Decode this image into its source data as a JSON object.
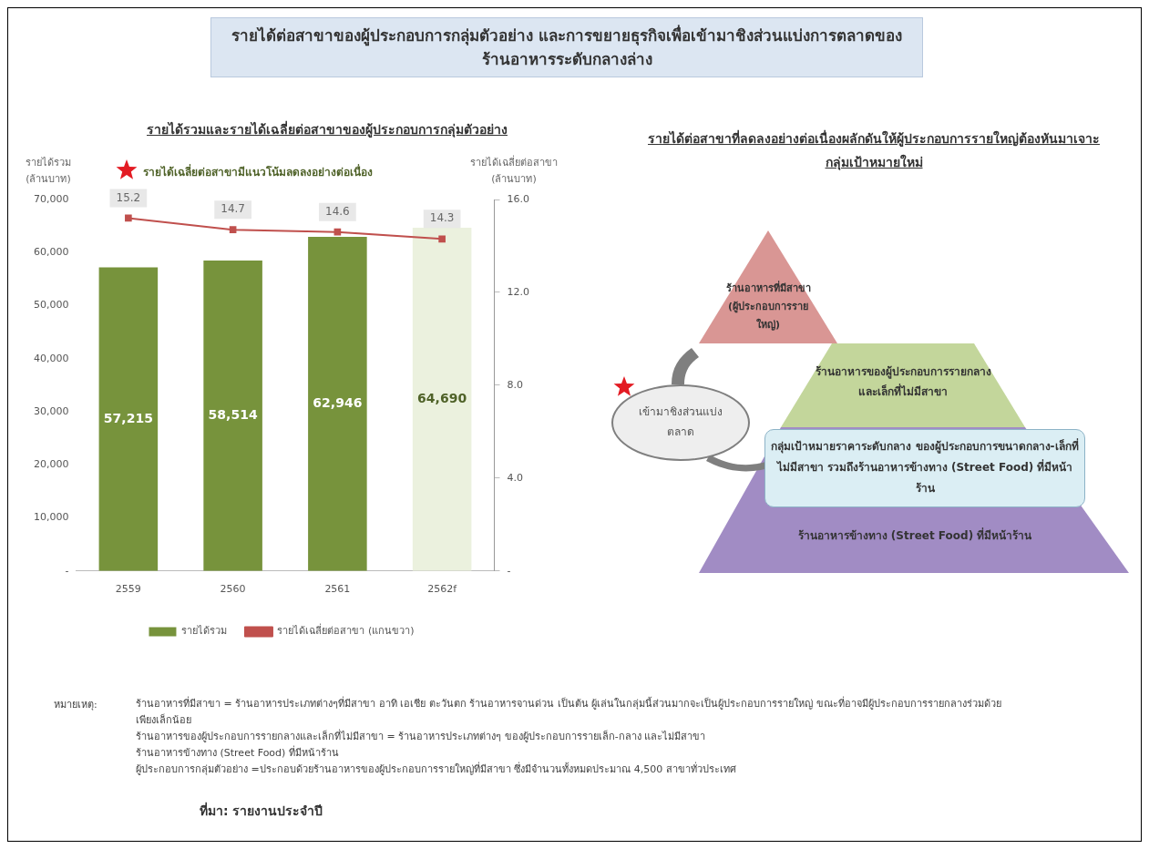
{
  "chart_data": [
    {
      "type": "bar",
      "title": "รายได้ต่อสาขาของผู้ประกอบการกลุ่มตัวอย่าง และการขยายธุรกิจเพื่อเข้ามาชิงส่วนแบ่งการตลาดของร้านอาหารระดับกลางล่าง",
      "subtitle": "รายได้รวมและรายได้เฉลี่ยต่อสาขาของผู้ประกอบการกลุ่มตัวอย่าง",
      "ylabel": "รายได้รวม (ล้านบาท)",
      "y2label": "รายได้เฉลี่ยต่อสาขา (ล้านบาท)",
      "categories": [
        "2559",
        "2560",
        "2561",
        "2562f"
      ],
      "series": [
        {
          "name": "รายได้รวม",
          "type": "bar",
          "colors": [
            "#77933c",
            "#77933c",
            "#77933c",
            "#ebf1de"
          ],
          "values": [
            57215,
            58514,
            62946,
            64690
          ],
          "value_labels": [
            "57,215",
            "58,514",
            "62,946",
            "64,690"
          ]
        },
        {
          "name": "รายได้เฉลี่ยต่อสาขา (แกนขวา)",
          "type": "line",
          "axis": "y2",
          "color": "#c0504d",
          "values": [
            15.2,
            14.7,
            14.6,
            14.3
          ],
          "value_labels": [
            "15.2",
            "14.7",
            "14.6",
            "14.3"
          ]
        }
      ],
      "ylim": [
        0,
        70000
      ],
      "yticks": [
        {
          "value": 0,
          "label": "-"
        },
        {
          "value": 10000,
          "label": "10,000"
        },
        {
          "value": 20000,
          "label": "20,000"
        },
        {
          "value": 30000,
          "label": "30,000"
        },
        {
          "value": 40000,
          "label": "40,000"
        },
        {
          "value": 50000,
          "label": "50,000"
        },
        {
          "value": 60000,
          "label": "60,000"
        },
        {
          "value": 70000,
          "label": "70,000"
        }
      ],
      "y2lim": [
        0,
        16
      ],
      "y2ticks": [
        {
          "value": 0,
          "label": "-"
        },
        {
          "value": 4,
          "label": "4.0"
        },
        {
          "value": 8,
          "label": "8.0"
        },
        {
          "value": 12,
          "label": "12.0"
        },
        {
          "value": 16,
          "label": "16.0"
        }
      ],
      "grid": false,
      "legend": "bottom",
      "marker": "square",
      "line_style": "solid",
      "annotations": [
        "รายได้เฉลี่ยต่อสาขามีแนวโน้มลดลงอย่างต่อเนื่อง",
        "หมายเหตุ:",
        "ร้านอาหารที่มีสาขา = ร้านอาหารประเภทต่างๆที่มีสาขา อาทิ เอเชีย ตะวันตก ร้านอาหารจานด่วน เป็นต้น ผู้เล่นในกลุ่มนี้ส่วนมากจะเป็นผู้ประกอบการรายใหญ่ ขณะที่อาจมีผู้ประกอบการรายกลางร่วมด้วยเพียงเล็กน้อย",
        "ร้านอาหารของผู้ประกอบการรายกลางและเล็กที่ไม่มีสาขา = ร้านอาหารประเภทต่างๆ ของผู้ประกอบการรายเล็ก-กลาง และไม่มีสาขา",
        "ร้านอาหารข้างทาง (Street Food) ที่มีหน้าร้าน",
        "ผู้ประกอบการกลุ่มตัวอย่าง =ประกอบด้วยร้านอาหารของผู้ประกอบการรายใหญ่ที่มีสาขา ซึ่งมีจำนวนทั้งหมดประมาณ 4,500 สาขาทั่วประเทศ",
        "ที่มา: รายงานประจำปี"
      ]
    },
    {
      "type": "other",
      "title": "รายได้ต่อสาขาที่ลดลงอย่างต่อเนื่องผลักดันให้ผู้ประกอบการรายใหญ่ต้องหันมาเจาะกลุ่มเป้าหมายใหม่",
      "annotations": [
        "ร้านอาหารที่มีสาขา (ผู้ประกอบการรายใหญ่)",
        "ร้านอาหารของผู้ประกอบการรายกลางและเล็กที่ไม่มีสาขา",
        "ร้านอาหารข้างทาง (Street Food) ที่มีหน้าร้าน",
        "กลุ่มเป้าหมายราคาระดับกลาง ของผู้ประกอบการขนาดกลาง-เล็กที่ไม่มีสาขา รวมถึงร้านอาหารข้างทาง (Street Food) ที่มีหน้าร้าน",
        "เข้ามาชิงส่วนแบ่งตลาด"
      ]
    }
  ]
}
